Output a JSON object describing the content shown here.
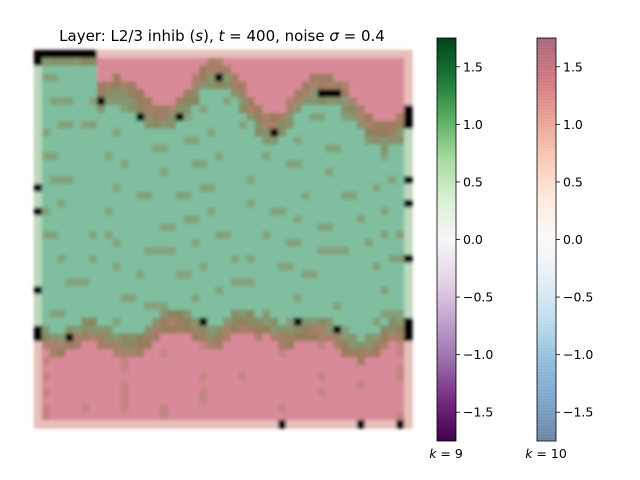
{
  "chart_data": {
    "type": "heatmap",
    "title": "Layer: L2/3 inhib (s), t = 400, noise σ = 0.4",
    "title_parts": {
      "prefix": "Layer: L2/3 inhib (",
      "sym_s": "s",
      "mid1": "), ",
      "sym_t": "t",
      "mid2": " = 400, noise ",
      "sym_sigma": "σ",
      "mid3": " = 0.4"
    },
    "description_of_field": "overlay of two categorical layers: k=9 (green, PRGn colormap) occupies the upper-middle region, k=10 (red, RdBu colormap, semi-transparent) occupies the top strip and bottom band",
    "grid_rows": 48,
    "grid_cols": 48,
    "colorbars": [
      {
        "id": "k9",
        "colormap": "PRGn",
        "label_prefix": "k",
        "label_value": "9",
        "vmin": -1.75,
        "vmax": 1.75,
        "ticks": [
          1.5,
          1.0,
          0.5,
          0.0,
          -0.5,
          -1.0,
          -1.5
        ],
        "tick_labels": [
          "1.5",
          "1.0",
          "0.5",
          "0.0",
          "−0.5",
          "−1.0",
          "−1.5"
        ],
        "alpha": 1.0
      },
      {
        "id": "k10",
        "colormap": "RdBu",
        "label_prefix": "k",
        "label_value": "10",
        "vmin": -1.75,
        "vmax": 1.75,
        "ticks": [
          1.5,
          1.0,
          0.5,
          0.0,
          -0.5,
          -1.0,
          -1.5
        ],
        "tick_labels": [
          "1.5",
          "1.0",
          "0.5",
          "0.0",
          "−0.5",
          "−1.0",
          "−1.5"
        ],
        "alpha": 0.6
      }
    ],
    "colors": {
      "green_region": "#7fbf9f",
      "red_region": "#d98a98",
      "boundary": "#8a7a50",
      "edge_glow": "#f2ecd8"
    }
  }
}
